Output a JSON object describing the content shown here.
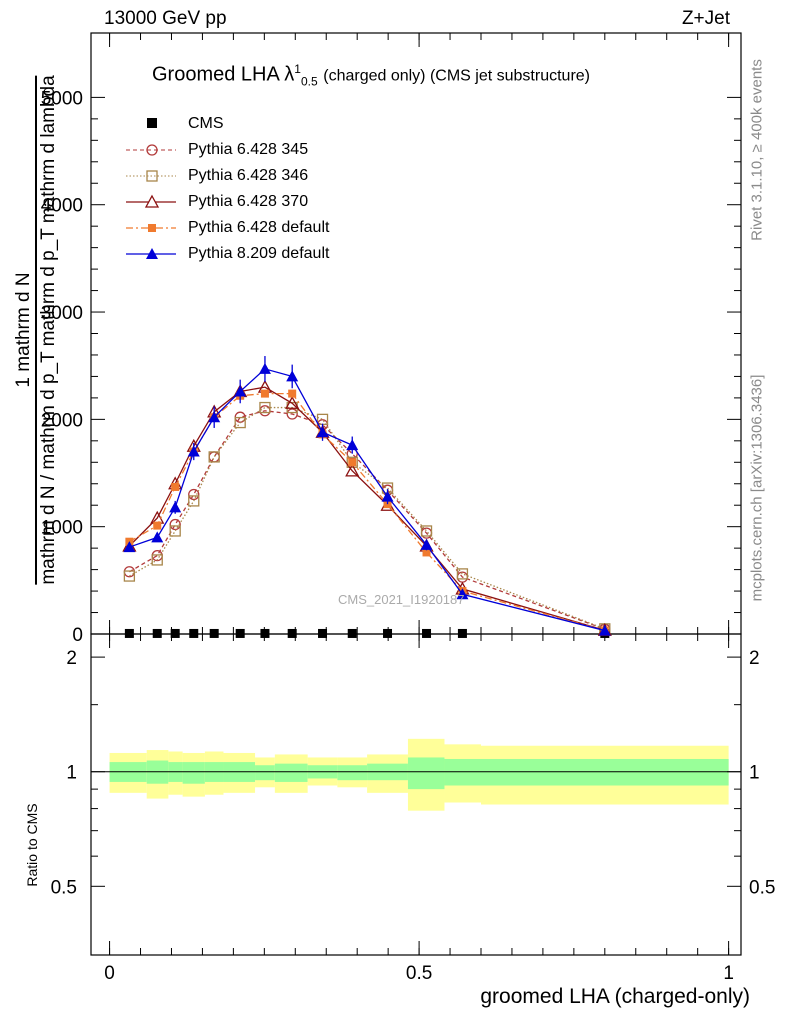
{
  "header": {
    "left": "13000 GeV pp",
    "right": "Z+Jet"
  },
  "title": {
    "main": "Groomed LHA",
    "symbol": "λ",
    "sup": "1",
    "sub": "0.5",
    "suffix": "(charged only) (CMS jet substructure)"
  },
  "side_labels": {
    "rivet": "Rivet 3.1.10, ≥ 400k events",
    "mcplots": "mcplots.cern.ch [arXiv:1306.3436]"
  },
  "watermark": "CMS_2021_I1920187",
  "y_axis": {
    "numerator_one": "1",
    "numerator": "mathrm d N",
    "denominator": "mathrm d N / mathrm d p_T mathrm d p_T mathrm d lambda"
  },
  "ratio_ylabel": "Ratio to CMS",
  "xlabel": "groomed LHA (charged-only)",
  "colors": {
    "cms": "#000000",
    "p345": "#b23a3a",
    "p346": "#a8864a",
    "p370": "#8b1010",
    "p6def": "#f07a2e",
    "p8def": "#0000d8",
    "band_inner": "#99ff99",
    "band_outer": "#ffff99"
  },
  "chart_data": {
    "type": "line",
    "x": [
      0.032,
      0.077,
      0.106,
      0.136,
      0.169,
      0.211,
      0.251,
      0.295,
      0.344,
      0.392,
      0.449,
      0.512,
      0.57,
      0.8
    ],
    "x_range": [
      -0.03,
      1.02
    ],
    "main_yticks": [
      0,
      1000,
      2000,
      3000,
      4000,
      5000
    ],
    "main_ytick_labels": [
      "0",
      "1000",
      "2000",
      "3000",
      "4000",
      "5000"
    ],
    "main_ylim": [
      0,
      5600
    ],
    "ratio_yticks": [
      0.5,
      1,
      2
    ],
    "ratio_ytick_labels": [
      "0.5",
      "1",
      "2"
    ],
    "ratio_ylim": [
      0.33,
      2.3
    ],
    "xticks": [
      0,
      0.5,
      1
    ],
    "xtick_labels": [
      "0",
      "0.5",
      "1"
    ],
    "series": [
      {
        "name": "CMS",
        "key": "cms",
        "values": [
          5,
          5,
          5,
          5,
          5,
          5,
          5,
          5,
          5,
          5,
          5,
          5,
          5,
          5
        ]
      },
      {
        "name": "Pythia 6.428 345",
        "key": "p345",
        "values": [
          580,
          730,
          1020,
          1300,
          1650,
          2020,
          2080,
          2050,
          1950,
          1680,
          1340,
          940,
          530,
          45
        ]
      },
      {
        "name": "Pythia 6.428 346",
        "key": "p346",
        "values": [
          540,
          690,
          960,
          1240,
          1650,
          1970,
          2110,
          2110,
          2000,
          1600,
          1360,
          960,
          560,
          48
        ]
      },
      {
        "name": "Pythia 6.428 370",
        "key": "p370",
        "values": [
          820,
          1080,
          1400,
          1750,
          2070,
          2260,
          2300,
          2150,
          1880,
          1520,
          1200,
          820,
          420,
          35
        ]
      },
      {
        "name": "Pythia 6.428 default",
        "key": "p6def",
        "values": [
          860,
          1010,
          1370,
          1700,
          2020,
          2220,
          2240,
          2240,
          1860,
          1600,
          1210,
          760,
          400,
          33
        ]
      },
      {
        "name": "Pythia 8.209 default",
        "key": "p8def",
        "values": [
          810,
          900,
          1180,
          1700,
          2020,
          2260,
          2470,
          2400,
          1880,
          1760,
          1280,
          830,
          370,
          32
        ]
      }
    ],
    "p8_errors": [
      30,
      40,
      60,
      80,
      100,
      110,
      120,
      110,
      80,
      80,
      70,
      50,
      30,
      10
    ],
    "ratio_band_edges": [
      0.0,
      0.06,
      0.095,
      0.118,
      0.154,
      0.184,
      0.235,
      0.267,
      0.32,
      0.368,
      0.416,
      0.482,
      0.541,
      0.6,
      1.0
    ],
    "ratio_inner": [
      [
        0.94,
        1.06
      ],
      [
        0.93,
        1.07
      ],
      [
        0.94,
        1.06
      ],
      [
        0.93,
        1.06
      ],
      [
        0.94,
        1.06
      ],
      [
        0.94,
        1.06
      ],
      [
        0.95,
        1.04
      ],
      [
        0.94,
        1.05
      ],
      [
        0.96,
        1.04
      ],
      [
        0.95,
        1.04
      ],
      [
        0.95,
        1.05
      ],
      [
        0.9,
        1.09
      ],
      [
        0.92,
        1.08
      ],
      [
        0.92,
        1.08
      ]
    ],
    "ratio_outer": [
      [
        0.88,
        1.12
      ],
      [
        0.85,
        1.14
      ],
      [
        0.87,
        1.13
      ],
      [
        0.86,
        1.12
      ],
      [
        0.87,
        1.13
      ],
      [
        0.88,
        1.12
      ],
      [
        0.91,
        1.09
      ],
      [
        0.88,
        1.11
      ],
      [
        0.92,
        1.09
      ],
      [
        0.91,
        1.09
      ],
      [
        0.88,
        1.11
      ],
      [
        0.79,
        1.22
      ],
      [
        0.83,
        1.18
      ],
      [
        0.82,
        1.17
      ]
    ],
    "legend_position": "top-left"
  }
}
